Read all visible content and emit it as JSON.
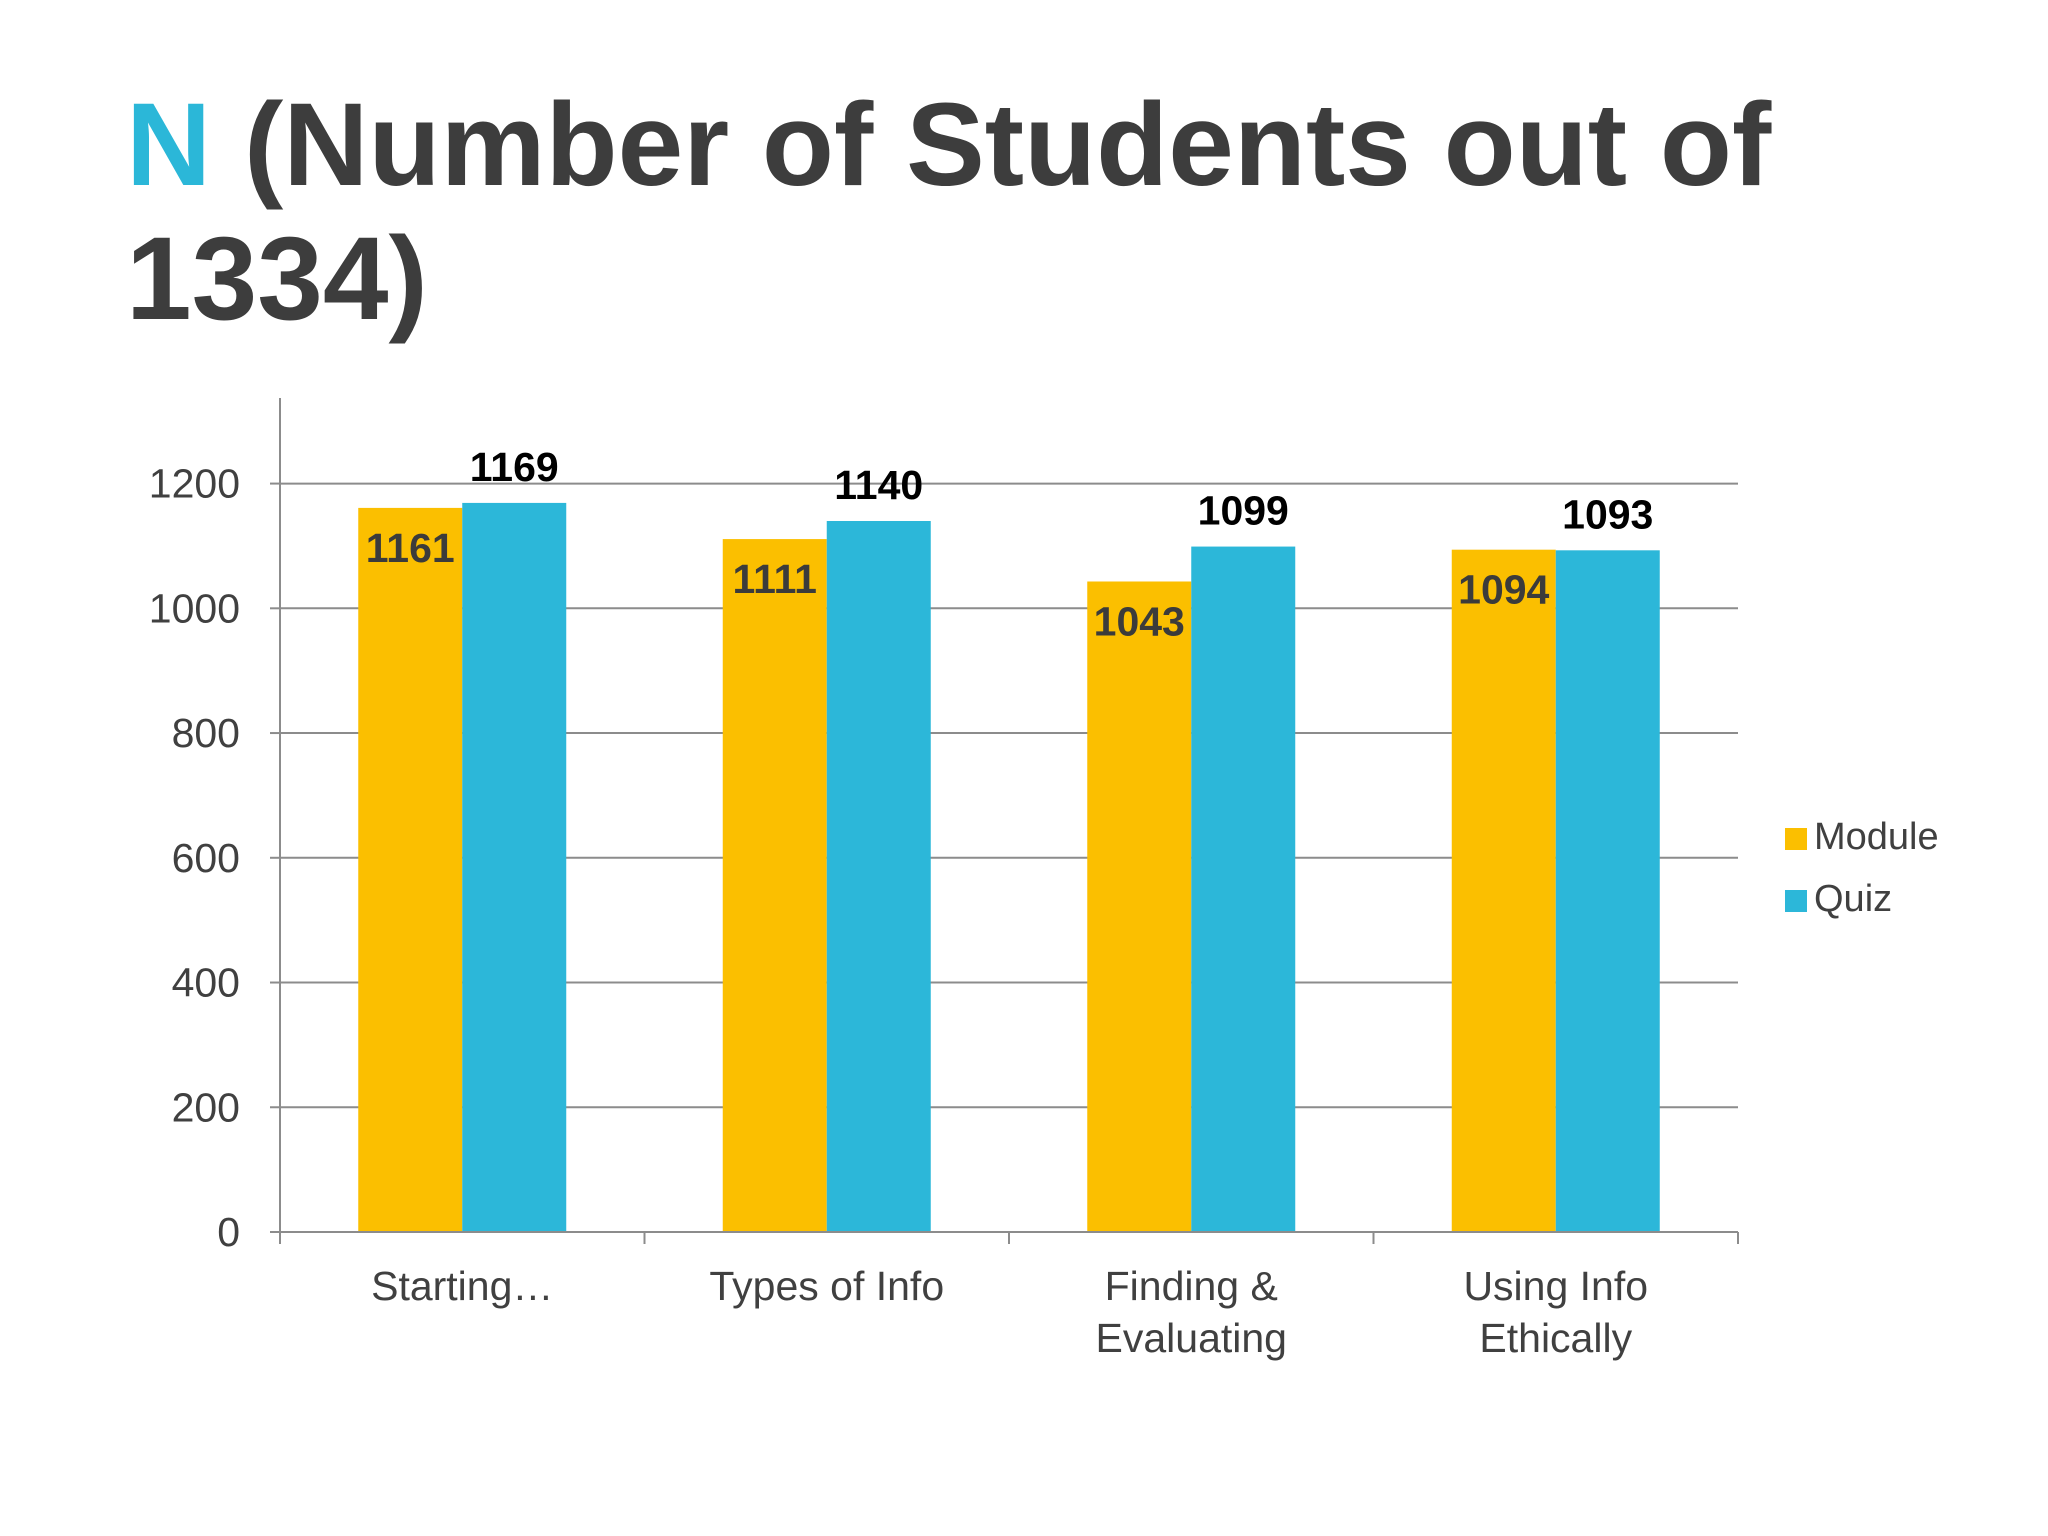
{
  "slide": {
    "title_accent": "N",
    "title_rest": " (Number of Students out of 1334)"
  },
  "colors": {
    "module": "#fbbf00",
    "quiz": "#2cb7d9",
    "title_accent": "#2bb7d8",
    "title_text": "#3d3d3d",
    "gridline": "#8c8c8c",
    "axis_text": "#404040"
  },
  "chart_data": {
    "type": "bar",
    "title": "",
    "xlabel": "",
    "ylabel": "",
    "categories": [
      [
        "Starting…"
      ],
      [
        "Types of Info"
      ],
      [
        "Finding &",
        "Evaluating"
      ],
      [
        "Using Info",
        "Ethically"
      ]
    ],
    "series": [
      {
        "name": "Module",
        "values": [
          1161,
          1111,
          1043,
          1094
        ]
      },
      {
        "name": "Quiz",
        "values": [
          1169,
          1140,
          1099,
          1093
        ]
      }
    ],
    "ylim": [
      0,
      1334
    ],
    "yticks": [
      0,
      200,
      400,
      600,
      800,
      1000,
      1200
    ],
    "grid": true,
    "legend": "right",
    "data_labels": true
  }
}
